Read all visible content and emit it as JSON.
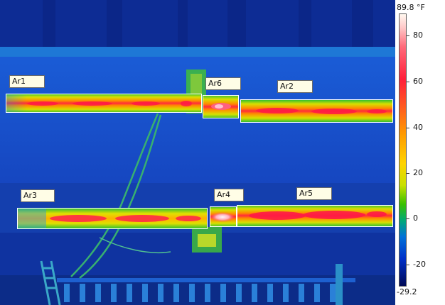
{
  "image": {
    "kind": "thermal infrared photograph",
    "subject": "two horizontal heated pipes mounted on a wall with measurement areas"
  },
  "colors": {
    "background_cold": "#0a2fa8",
    "pipe_core": "#ff2040",
    "pipe_edge": "#ffd800",
    "hotspot": "#ffe6ee",
    "roi_border": "#ffffff",
    "label_bg": "#fffde6"
  },
  "areas": [
    {
      "label": "Ar1"
    },
    {
      "label": "Ar6"
    },
    {
      "label": "Ar2"
    },
    {
      "label": "Ar3"
    },
    {
      "label": "Ar4"
    },
    {
      "label": "Ar5"
    }
  ],
  "scale": {
    "max_label": "89.8 °F",
    "min_label": "-29.2",
    "max_value": 89.8,
    "min_value": -29.2,
    "ticks": [
      "80",
      "60",
      "40",
      "20",
      "0",
      "-20"
    ]
  }
}
